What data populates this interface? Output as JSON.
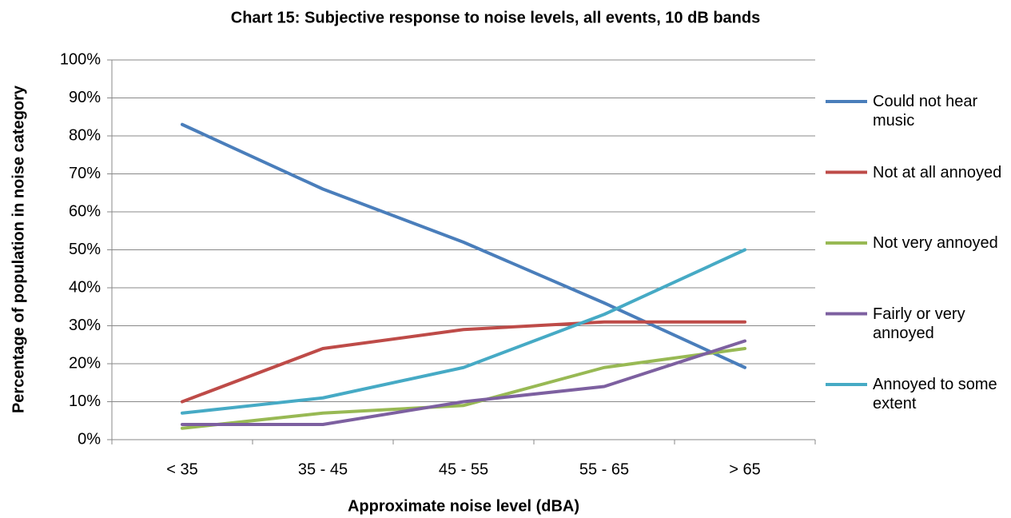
{
  "chart_data": {
    "type": "line",
    "title": "Chart 15: Subjective response to noise levels, all events, 10 dB bands",
    "x_label": "Approximate noise level (dBA)",
    "y_label": "Percentage of population in noise category",
    "categories": [
      "< 35",
      "35 - 45",
      "45 - 55",
      "55 - 65",
      "> 65"
    ],
    "series": [
      {
        "name": "Could not hear music",
        "color": "#4a7ebb",
        "values": [
          83,
          66,
          52,
          36,
          19
        ]
      },
      {
        "name": "Not at all annoyed",
        "color": "#be4b48",
        "values": [
          10,
          24,
          29,
          31,
          31
        ]
      },
      {
        "name": "Not very annoyed",
        "color": "#98b954",
        "values": [
          3,
          7,
          9,
          19,
          24
        ]
      },
      {
        "name": "Fairly or very annoyed",
        "color": "#7d60a0",
        "values": [
          4,
          4,
          10,
          14,
          26
        ]
      },
      {
        "name": "Annoyed to some extent",
        "color": "#46aac5",
        "values": [
          7,
          11,
          19,
          33,
          50
        ]
      }
    ],
    "ylim": [
      0,
      100
    ],
    "yticks": [
      {
        "value": 0,
        "label": "0%"
      },
      {
        "value": 10,
        "label": "10%"
      },
      {
        "value": 20,
        "label": "20%"
      },
      {
        "value": 30,
        "label": "30%"
      },
      {
        "value": 40,
        "label": "40%"
      },
      {
        "value": 50,
        "label": "50%"
      },
      {
        "value": 60,
        "label": "60%"
      },
      {
        "value": 70,
        "label": "70%"
      },
      {
        "value": 80,
        "label": "80%"
      },
      {
        "value": 90,
        "label": "90%"
      },
      {
        "value": 100,
        "label": "100%"
      }
    ],
    "grid": true,
    "legend": "right"
  }
}
